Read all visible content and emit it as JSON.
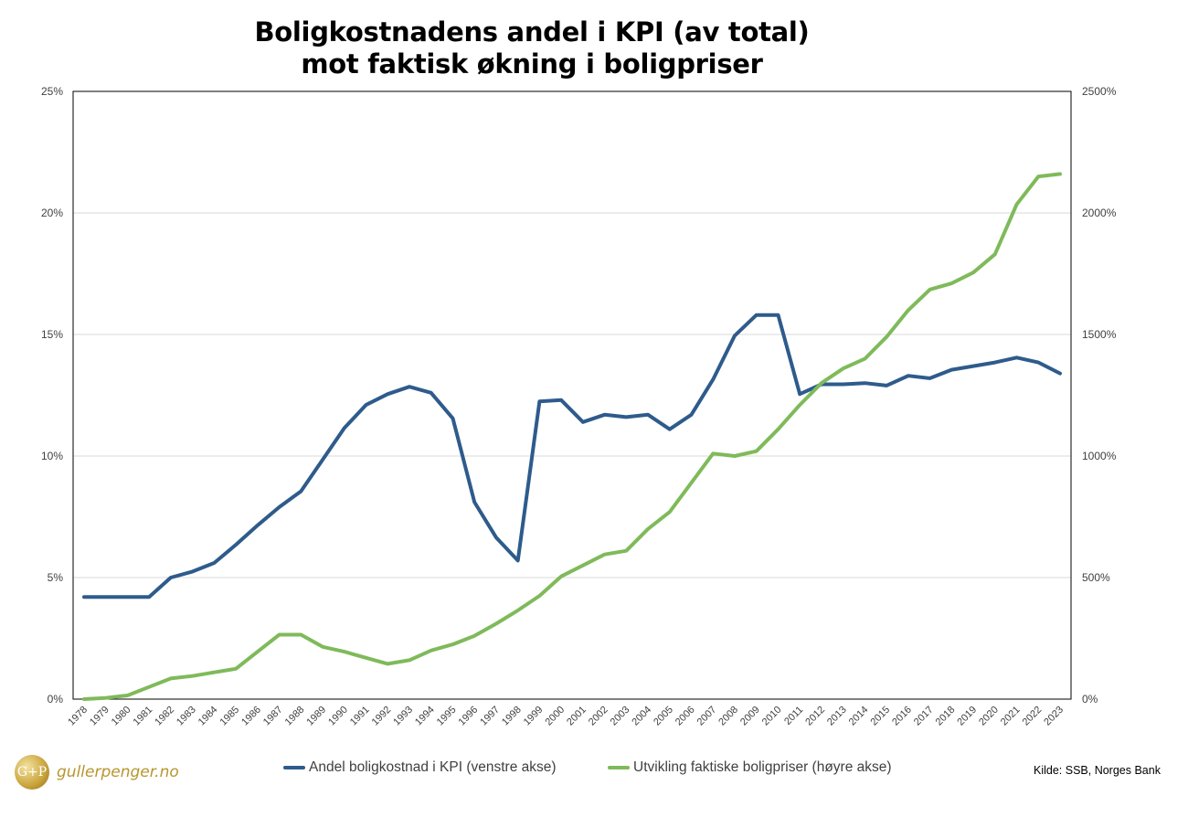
{
  "chart_data": {
    "type": "line",
    "title_line1": "Boligkostnadens andel i KPI (av total)",
    "title_line2": "mot faktisk økning i boligpriser",
    "x": [
      "1978",
      "1979",
      "1980",
      "1981",
      "1982",
      "1983",
      "1984",
      "1985",
      "1986",
      "1987",
      "1988",
      "1989",
      "1990",
      "1991",
      "1992",
      "1993",
      "1994",
      "1995",
      "1996",
      "1997",
      "1998",
      "1999",
      "2000",
      "2001",
      "2002",
      "2003",
      "2004",
      "2005",
      "2006",
      "2007",
      "2008",
      "2009",
      "2010",
      "2011",
      "2012",
      "2013",
      "2014",
      "2015",
      "2016",
      "2017",
      "2018",
      "2019",
      "2020",
      "2021",
      "2022",
      "2023"
    ],
    "left_axis": {
      "min": 0,
      "max": 25,
      "step": 5,
      "tick_labels": [
        "0%",
        "5%",
        "10%",
        "15%",
        "20%",
        "25%"
      ]
    },
    "right_axis": {
      "min": 0,
      "max": 2500,
      "step": 500,
      "tick_labels": [
        "0%",
        "500%",
        "1000%",
        "1500%",
        "2000%",
        "2500%"
      ]
    },
    "grid": true,
    "legend_position": "bottom",
    "series": [
      {
        "name": "Andel boligkostnad i KPI (venstre akse)",
        "axis": "left",
        "color": "#2e5b8c",
        "values": [
          4.2,
          4.2,
          4.2,
          4.2,
          5.0,
          5.25,
          5.6,
          6.35,
          7.15,
          7.9,
          8.55,
          9.85,
          11.15,
          12.1,
          12.55,
          12.85,
          12.6,
          11.55,
          8.1,
          6.65,
          5.7,
          12.25,
          12.3,
          11.4,
          11.7,
          11.6,
          11.7,
          11.1,
          11.7,
          13.15,
          14.95,
          15.8,
          15.8,
          12.55,
          12.95,
          12.95,
          13.0,
          12.9,
          13.3,
          13.2,
          13.55,
          13.7,
          13.85,
          14.05,
          13.85,
          13.4
        ]
      },
      {
        "name": "Utvikling faktiske boligpriser (høyre akse)",
        "axis": "right",
        "color": "#7fba5a",
        "values": [
          0,
          5,
          15,
          50,
          85,
          95,
          110,
          125,
          195,
          265,
          265,
          215,
          195,
          170,
          145,
          160,
          200,
          225,
          260,
          310,
          365,
          425,
          505,
          550,
          595,
          610,
          700,
          770,
          890,
          1010,
          1000,
          1020,
          1110,
          1210,
          1300,
          1360,
          1400,
          1490,
          1600,
          1685,
          1710,
          1755,
          1830,
          2035,
          2150,
          2160
        ]
      }
    ]
  },
  "legend": {
    "item1": "Andel boligkostnad i KPI (venstre akse)",
    "item2": "Utvikling faktiske boligpriser (høyre akse)"
  },
  "source": "Kilde: SSB, Norges Bank",
  "brand": {
    "logo_mark": "G+P",
    "name": "gullerpenger.no"
  },
  "colors": {
    "series1": "#2e5b8c",
    "series2": "#7fba5a",
    "grid": "#d9d9d9"
  }
}
